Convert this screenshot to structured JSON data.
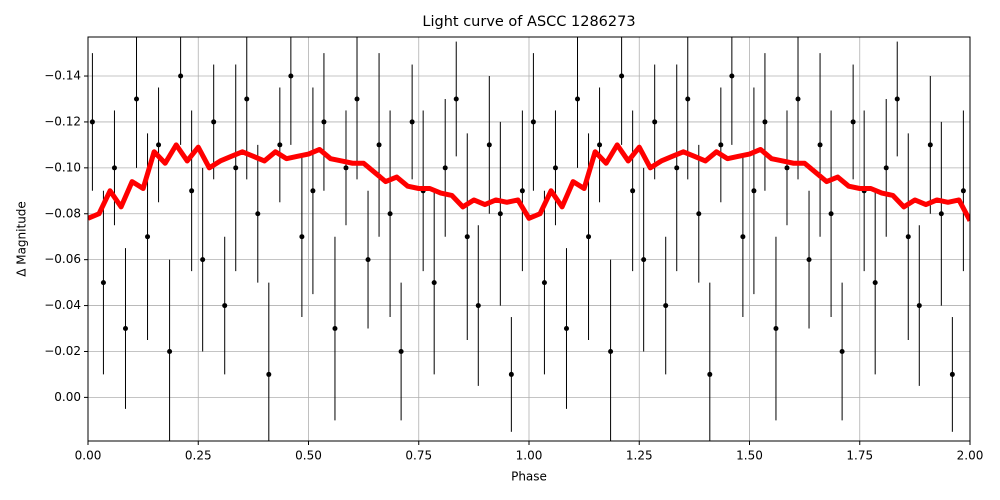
{
  "chart_data": {
    "type": "scatter",
    "title": "Light curve of ASCC 1286273",
    "x_label": "Phase",
    "y_label": "Δ Magnitude",
    "xlim": [
      0,
      2
    ],
    "ylim": [
      0.019,
      -0.157
    ],
    "xticks": [
      {
        "value": 0,
        "label": "0.00"
      },
      0.25,
      {
        "value": 0.5,
        "label": "0.50"
      },
      0.75,
      {
        "value": 1,
        "label": "1.00"
      },
      1.25,
      {
        "value": 1.5,
        "label": "1.50"
      },
      1.75,
      {
        "value": 2,
        "label": "2.00"
      }
    ],
    "yticks": [
      {
        "value": 0,
        "label": "0.00"
      },
      {
        "value": -0.02,
        "label": "−0.02"
      },
      {
        "value": -0.04,
        "label": "−0.04"
      },
      {
        "value": -0.06,
        "label": "−0.06"
      },
      {
        "value": -0.08,
        "label": "−0.08"
      },
      {
        "value": -0.1,
        "label": "−0.10"
      },
      {
        "value": -0.12,
        "label": "−0.12"
      },
      {
        "value": -0.14,
        "label": "−0.14"
      }
    ],
    "grid": true,
    "points": {
      "color": "#000000",
      "x": [
        0.01,
        0.035,
        0.06,
        0.085,
        0.11,
        0.135,
        0.16,
        0.185,
        0.21,
        0.235,
        0.26,
        0.285,
        0.31,
        0.335,
        0.36,
        0.385,
        0.41,
        0.435,
        0.46,
        0.485,
        0.51,
        0.535,
        0.56,
        0.585,
        0.61,
        0.635,
        0.66,
        0.685,
        0.71,
        0.735,
        0.76,
        0.785,
        0.81,
        0.835,
        0.86,
        0.885,
        0.91,
        0.935,
        0.96,
        0.985,
        1.01,
        1.035,
        1.06,
        1.085,
        1.11,
        1.135,
        1.16,
        1.185,
        1.21,
        1.235,
        1.26,
        1.285,
        1.31,
        1.335,
        1.36,
        1.385,
        1.41,
        1.435,
        1.46,
        1.485,
        1.51,
        1.535,
        1.56,
        1.585,
        1.61,
        1.635,
        1.66,
        1.685,
        1.71,
        1.735,
        1.76,
        1.785,
        1.81,
        1.835,
        1.86,
        1.885,
        1.91,
        1.935,
        1.96,
        1.985
      ],
      "values": [
        -0.12,
        -0.05,
        -0.1,
        -0.03,
        -0.13,
        -0.07,
        -0.11,
        -0.02,
        -0.14,
        -0.09,
        -0.06,
        -0.12,
        -0.04,
        -0.1,
        -0.13,
        -0.08,
        -0.01,
        -0.11,
        -0.14,
        -0.07,
        -0.09,
        -0.12,
        -0.03,
        -0.1,
        -0.13,
        -0.06,
        -0.11,
        -0.08,
        -0.02,
        -0.12,
        -0.09,
        -0.05,
        -0.1,
        -0.13,
        -0.07,
        -0.04,
        -0.11,
        -0.08,
        -0.01,
        -0.09,
        -0.12,
        -0.05,
        -0.1,
        -0.03,
        -0.13,
        -0.07,
        -0.11,
        -0.02,
        -0.14,
        -0.09,
        -0.06,
        -0.12,
        -0.04,
        -0.1,
        -0.13,
        -0.08,
        -0.01,
        -0.11,
        -0.14,
        -0.07,
        -0.09,
        -0.12,
        -0.03,
        -0.1,
        -0.13,
        -0.06,
        -0.11,
        -0.08,
        -0.02,
        -0.12,
        -0.09,
        -0.05,
        -0.1,
        -0.13,
        -0.07,
        -0.04,
        -0.11,
        -0.08,
        -0.01,
        -0.09
      ],
      "errors": [
        0.03,
        0.04,
        0.025,
        0.035,
        0.03,
        0.045,
        0.025,
        0.04,
        0.03,
        0.035,
        0.04,
        0.025,
        0.03,
        0.045,
        0.035,
        0.03,
        0.04,
        0.025,
        0.03,
        0.035,
        0.045,
        0.03,
        0.04,
        0.025,
        0.035,
        0.03,
        0.04,
        0.045,
        0.03,
        0.025,
        0.035,
        0.04,
        0.03,
        0.025,
        0.045,
        0.035,
        0.03,
        0.04,
        0.025,
        0.035,
        0.03,
        0.04,
        0.025,
        0.035,
        0.03,
        0.045,
        0.025,
        0.04,
        0.03,
        0.035,
        0.04,
        0.025,
        0.03,
        0.045,
        0.035,
        0.03,
        0.04,
        0.025,
        0.03,
        0.035,
        0.045,
        0.03,
        0.04,
        0.025,
        0.035,
        0.03,
        0.04,
        0.045,
        0.03,
        0.025,
        0.035,
        0.04,
        0.03,
        0.025,
        0.045,
        0.035,
        0.03,
        0.04,
        0.025,
        0.035
      ]
    },
    "curve": {
      "color": "#ff0000",
      "x": [
        0,
        0.025,
        0.05,
        0.075,
        0.1,
        0.125,
        0.15,
        0.175,
        0.2,
        0.225,
        0.25,
        0.275,
        0.3,
        0.325,
        0.35,
        0.375,
        0.4,
        0.425,
        0.45,
        0.475,
        0.5,
        0.525,
        0.55,
        0.575,
        0.6,
        0.625,
        0.65,
        0.675,
        0.7,
        0.725,
        0.75,
        0.775,
        0.8,
        0.825,
        0.85,
        0.875,
        0.9,
        0.925,
        0.95,
        0.975,
        1,
        1.025,
        1.05,
        1.075,
        1.1,
        1.125,
        1.15,
        1.175,
        1.2,
        1.225,
        1.25,
        1.275,
        1.3,
        1.325,
        1.35,
        1.375,
        1.4,
        1.425,
        1.45,
        1.475,
        1.5,
        1.525,
        1.55,
        1.575,
        1.6,
        1.625,
        1.65,
        1.675,
        1.7,
        1.725,
        1.75,
        1.775,
        1.8,
        1.825,
        1.85,
        1.875,
        1.9,
        1.925,
        1.95,
        1.975,
        2
      ],
      "values": [
        -0.078,
        -0.08,
        -0.09,
        -0.083,
        -0.094,
        -0.091,
        -0.107,
        -0.102,
        -0.11,
        -0.103,
        -0.109,
        -0.1,
        -0.103,
        -0.105,
        -0.107,
        -0.105,
        -0.103,
        -0.107,
        -0.104,
        -0.105,
        -0.106,
        -0.108,
        -0.104,
        -0.103,
        -0.102,
        -0.102,
        -0.098,
        -0.094,
        -0.096,
        -0.092,
        -0.091,
        -0.091,
        -0.089,
        -0.088,
        -0.083,
        -0.086,
        -0.084,
        -0.086,
        -0.085,
        -0.086,
        -0.078,
        -0.08,
        -0.09,
        -0.083,
        -0.094,
        -0.091,
        -0.107,
        -0.102,
        -0.11,
        -0.103,
        -0.109,
        -0.1,
        -0.103,
        -0.105,
        -0.107,
        -0.105,
        -0.103,
        -0.107,
        -0.104,
        -0.105,
        -0.106,
        -0.108,
        -0.104,
        -0.103,
        -0.102,
        -0.102,
        -0.098,
        -0.094,
        -0.096,
        -0.092,
        -0.091,
        -0.091,
        -0.089,
        -0.088,
        -0.083,
        -0.086,
        -0.084,
        -0.086,
        -0.085,
        -0.086,
        -0.077
      ]
    }
  }
}
